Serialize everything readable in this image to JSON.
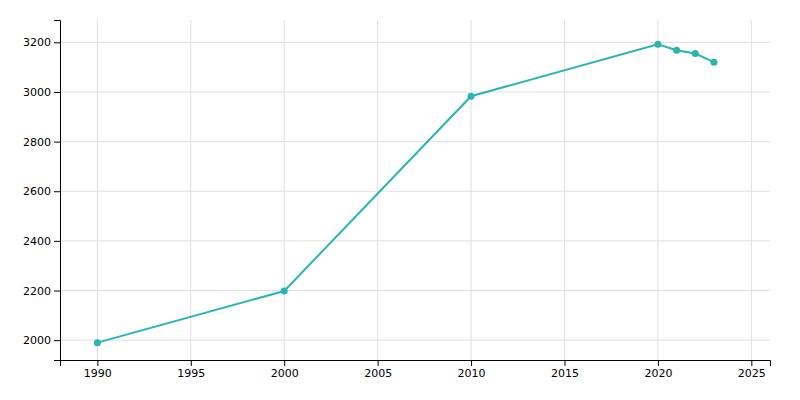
{
  "chart_data": {
    "type": "line",
    "x": [
      1990,
      2000,
      2010,
      2020,
      2021,
      2022,
      2023
    ],
    "values": [
      1990,
      2198,
      2983,
      3192,
      3168,
      3155,
      3120
    ],
    "color": "#2ab5b0",
    "marker": "circle",
    "xlim": [
      1988,
      2026
    ],
    "ylim": [
      1920,
      3290
    ],
    "xticks": [
      1990,
      1995,
      2000,
      2005,
      2010,
      2015,
      2020,
      2025
    ],
    "yticks": [
      2000,
      2200,
      2400,
      2600,
      2800,
      3000,
      3200
    ],
    "grid": true
  }
}
